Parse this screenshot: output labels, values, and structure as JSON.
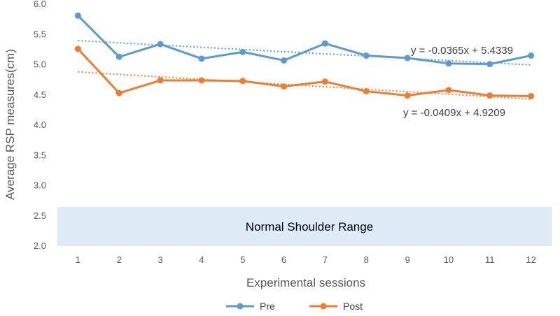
{
  "chart_data": {
    "type": "line",
    "xlabel": "Experimental sessions",
    "ylabel": "Average RSP measures(cm)",
    "ylim": [
      2.0,
      6.0
    ],
    "ytick_step": 0.5,
    "grid": false,
    "legend_position": "bottom",
    "categories": [
      1,
      2,
      3,
      4,
      5,
      6,
      7,
      8,
      9,
      10,
      11,
      12
    ],
    "series": [
      {
        "name": "Pre",
        "color": "#5B9BD5",
        "values": [
          5.81,
          5.13,
          5.34,
          5.1,
          5.21,
          5.07,
          5.35,
          5.15,
          5.11,
          5.02,
          5.01,
          5.15
        ],
        "trendline": {
          "slope": -0.0365,
          "intercept": 5.4339,
          "equation": "y = -0.0365x + 5.4339"
        }
      },
      {
        "name": "Post",
        "color": "#ED7D31",
        "values": [
          5.26,
          4.53,
          4.74,
          4.74,
          4.73,
          4.64,
          4.72,
          4.56,
          4.49,
          4.58,
          4.49,
          4.48
        ],
        "trendline": {
          "slope": -0.0409,
          "intercept": 4.9209,
          "equation": "y = -0.0409x + 4.9209"
        }
      }
    ],
    "band": {
      "label": "Normal Shoulder Range",
      "y_from": 2.0,
      "y_to": 2.65,
      "color": "#DEEBF7"
    }
  }
}
